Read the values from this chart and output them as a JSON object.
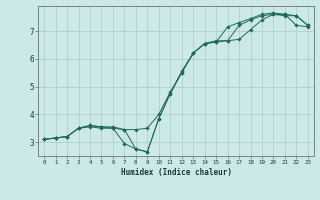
{
  "xlabel": "Humidex (Indice chaleur)",
  "background_color": "#cce8e8",
  "grid_color": "#aacccc",
  "line_color": "#1a6b5a",
  "xlim": [
    -0.5,
    23.5
  ],
  "ylim": [
    2.5,
    7.9
  ],
  "x_ticks": [
    0,
    1,
    2,
    3,
    4,
    5,
    6,
    7,
    8,
    9,
    10,
    11,
    12,
    13,
    14,
    15,
    16,
    17,
    18,
    19,
    20,
    21,
    22,
    23
  ],
  "y_ticks": [
    3,
    4,
    5,
    6,
    7
  ],
  "series1": {
    "x": [
      0,
      1,
      2,
      3,
      4,
      5,
      6,
      7,
      8,
      9,
      10,
      11,
      12,
      13,
      14,
      15,
      16,
      17,
      18,
      19,
      20,
      21,
      22,
      23
    ],
    "y": [
      3.1,
      3.15,
      3.2,
      3.5,
      3.6,
      3.55,
      3.55,
      3.45,
      3.45,
      3.5,
      4.0,
      4.8,
      5.5,
      6.2,
      6.55,
      6.6,
      6.65,
      6.7,
      7.05,
      7.4,
      7.6,
      7.6,
      7.2,
      7.15
    ]
  },
  "series2": {
    "x": [
      0,
      1,
      2,
      3,
      4,
      5,
      6,
      7,
      8,
      9,
      10,
      11,
      12,
      13,
      14,
      15,
      16,
      17,
      18,
      19,
      20,
      21,
      22,
      23
    ],
    "y": [
      3.1,
      3.15,
      3.2,
      3.5,
      3.6,
      3.55,
      3.5,
      2.95,
      2.75,
      2.65,
      3.85,
      4.75,
      5.55,
      6.2,
      6.55,
      6.65,
      6.65,
      7.2,
      7.4,
      7.55,
      7.6,
      7.55,
      7.55,
      7.2
    ]
  },
  "series3": {
    "x": [
      0,
      1,
      2,
      3,
      4,
      5,
      6,
      7,
      8,
      9,
      10,
      11,
      12,
      13,
      14,
      15,
      16,
      17,
      18,
      19,
      20,
      21,
      22,
      23
    ],
    "y": [
      3.1,
      3.15,
      3.2,
      3.5,
      3.55,
      3.5,
      3.5,
      3.45,
      2.75,
      2.65,
      3.85,
      4.75,
      5.5,
      6.2,
      6.55,
      6.6,
      7.15,
      7.3,
      7.45,
      7.6,
      7.65,
      7.6,
      7.55,
      7.2
    ]
  }
}
